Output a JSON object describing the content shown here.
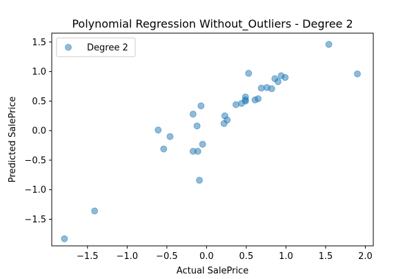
{
  "chart_data": {
    "type": "scatter",
    "title": "Polynomial Regression Without_Outliers - Degree 2",
    "xlabel": "Actual SalePrice",
    "ylabel": "Predicted SalePrice",
    "xlim": [
      -1.95,
      2.1
    ],
    "ylim": [
      -1.95,
      1.65
    ],
    "xticks": [
      -1.5,
      -1.0,
      -0.5,
      0.0,
      0.5,
      1.0,
      1.5,
      2.0
    ],
    "xtick_labels": [
      "−1.5",
      "−1.0",
      "−0.5",
      "0.0",
      "0.5",
      "1.0",
      "1.5",
      "2.0"
    ],
    "yticks": [
      -1.5,
      -1.0,
      -0.5,
      0.0,
      0.5,
      1.0,
      1.5
    ],
    "ytick_labels": [
      "−1.5",
      "−1.0",
      "−0.5",
      "0.0",
      "0.5",
      "1.0",
      "1.5"
    ],
    "grid": false,
    "legend_position": "top-left",
    "series": [
      {
        "name": "Degree 2",
        "color": "#1f77b4",
        "alpha": 0.5,
        "points": [
          {
            "x": -1.79,
            "y": -1.83
          },
          {
            "x": -1.41,
            "y": -1.36
          },
          {
            "x": -0.61,
            "y": 0.01
          },
          {
            "x": -0.54,
            "y": -0.31
          },
          {
            "x": -0.46,
            "y": -0.1
          },
          {
            "x": -0.17,
            "y": 0.28
          },
          {
            "x": -0.17,
            "y": -0.35
          },
          {
            "x": -0.11,
            "y": -0.35
          },
          {
            "x": -0.12,
            "y": 0.08
          },
          {
            "x": -0.09,
            "y": -0.84
          },
          {
            "x": -0.07,
            "y": 0.42
          },
          {
            "x": -0.05,
            "y": -0.23
          },
          {
            "x": 0.22,
            "y": 0.12
          },
          {
            "x": 0.23,
            "y": 0.25
          },
          {
            "x": 0.26,
            "y": 0.18
          },
          {
            "x": 0.37,
            "y": 0.44
          },
          {
            "x": 0.44,
            "y": 0.46
          },
          {
            "x": 0.49,
            "y": 0.5
          },
          {
            "x": 0.49,
            "y": 0.52
          },
          {
            "x": 0.49,
            "y": 0.57
          },
          {
            "x": 0.53,
            "y": 0.97
          },
          {
            "x": 0.61,
            "y": 0.52
          },
          {
            "x": 0.65,
            "y": 0.54
          },
          {
            "x": 0.69,
            "y": 0.72
          },
          {
            "x": 0.76,
            "y": 0.73
          },
          {
            "x": 0.82,
            "y": 0.71
          },
          {
            "x": 0.86,
            "y": 0.88
          },
          {
            "x": 0.9,
            "y": 0.83
          },
          {
            "x": 0.94,
            "y": 0.93
          },
          {
            "x": 0.99,
            "y": 0.9
          },
          {
            "x": 1.54,
            "y": 1.46
          },
          {
            "x": 1.9,
            "y": 0.96
          }
        ]
      }
    ]
  }
}
